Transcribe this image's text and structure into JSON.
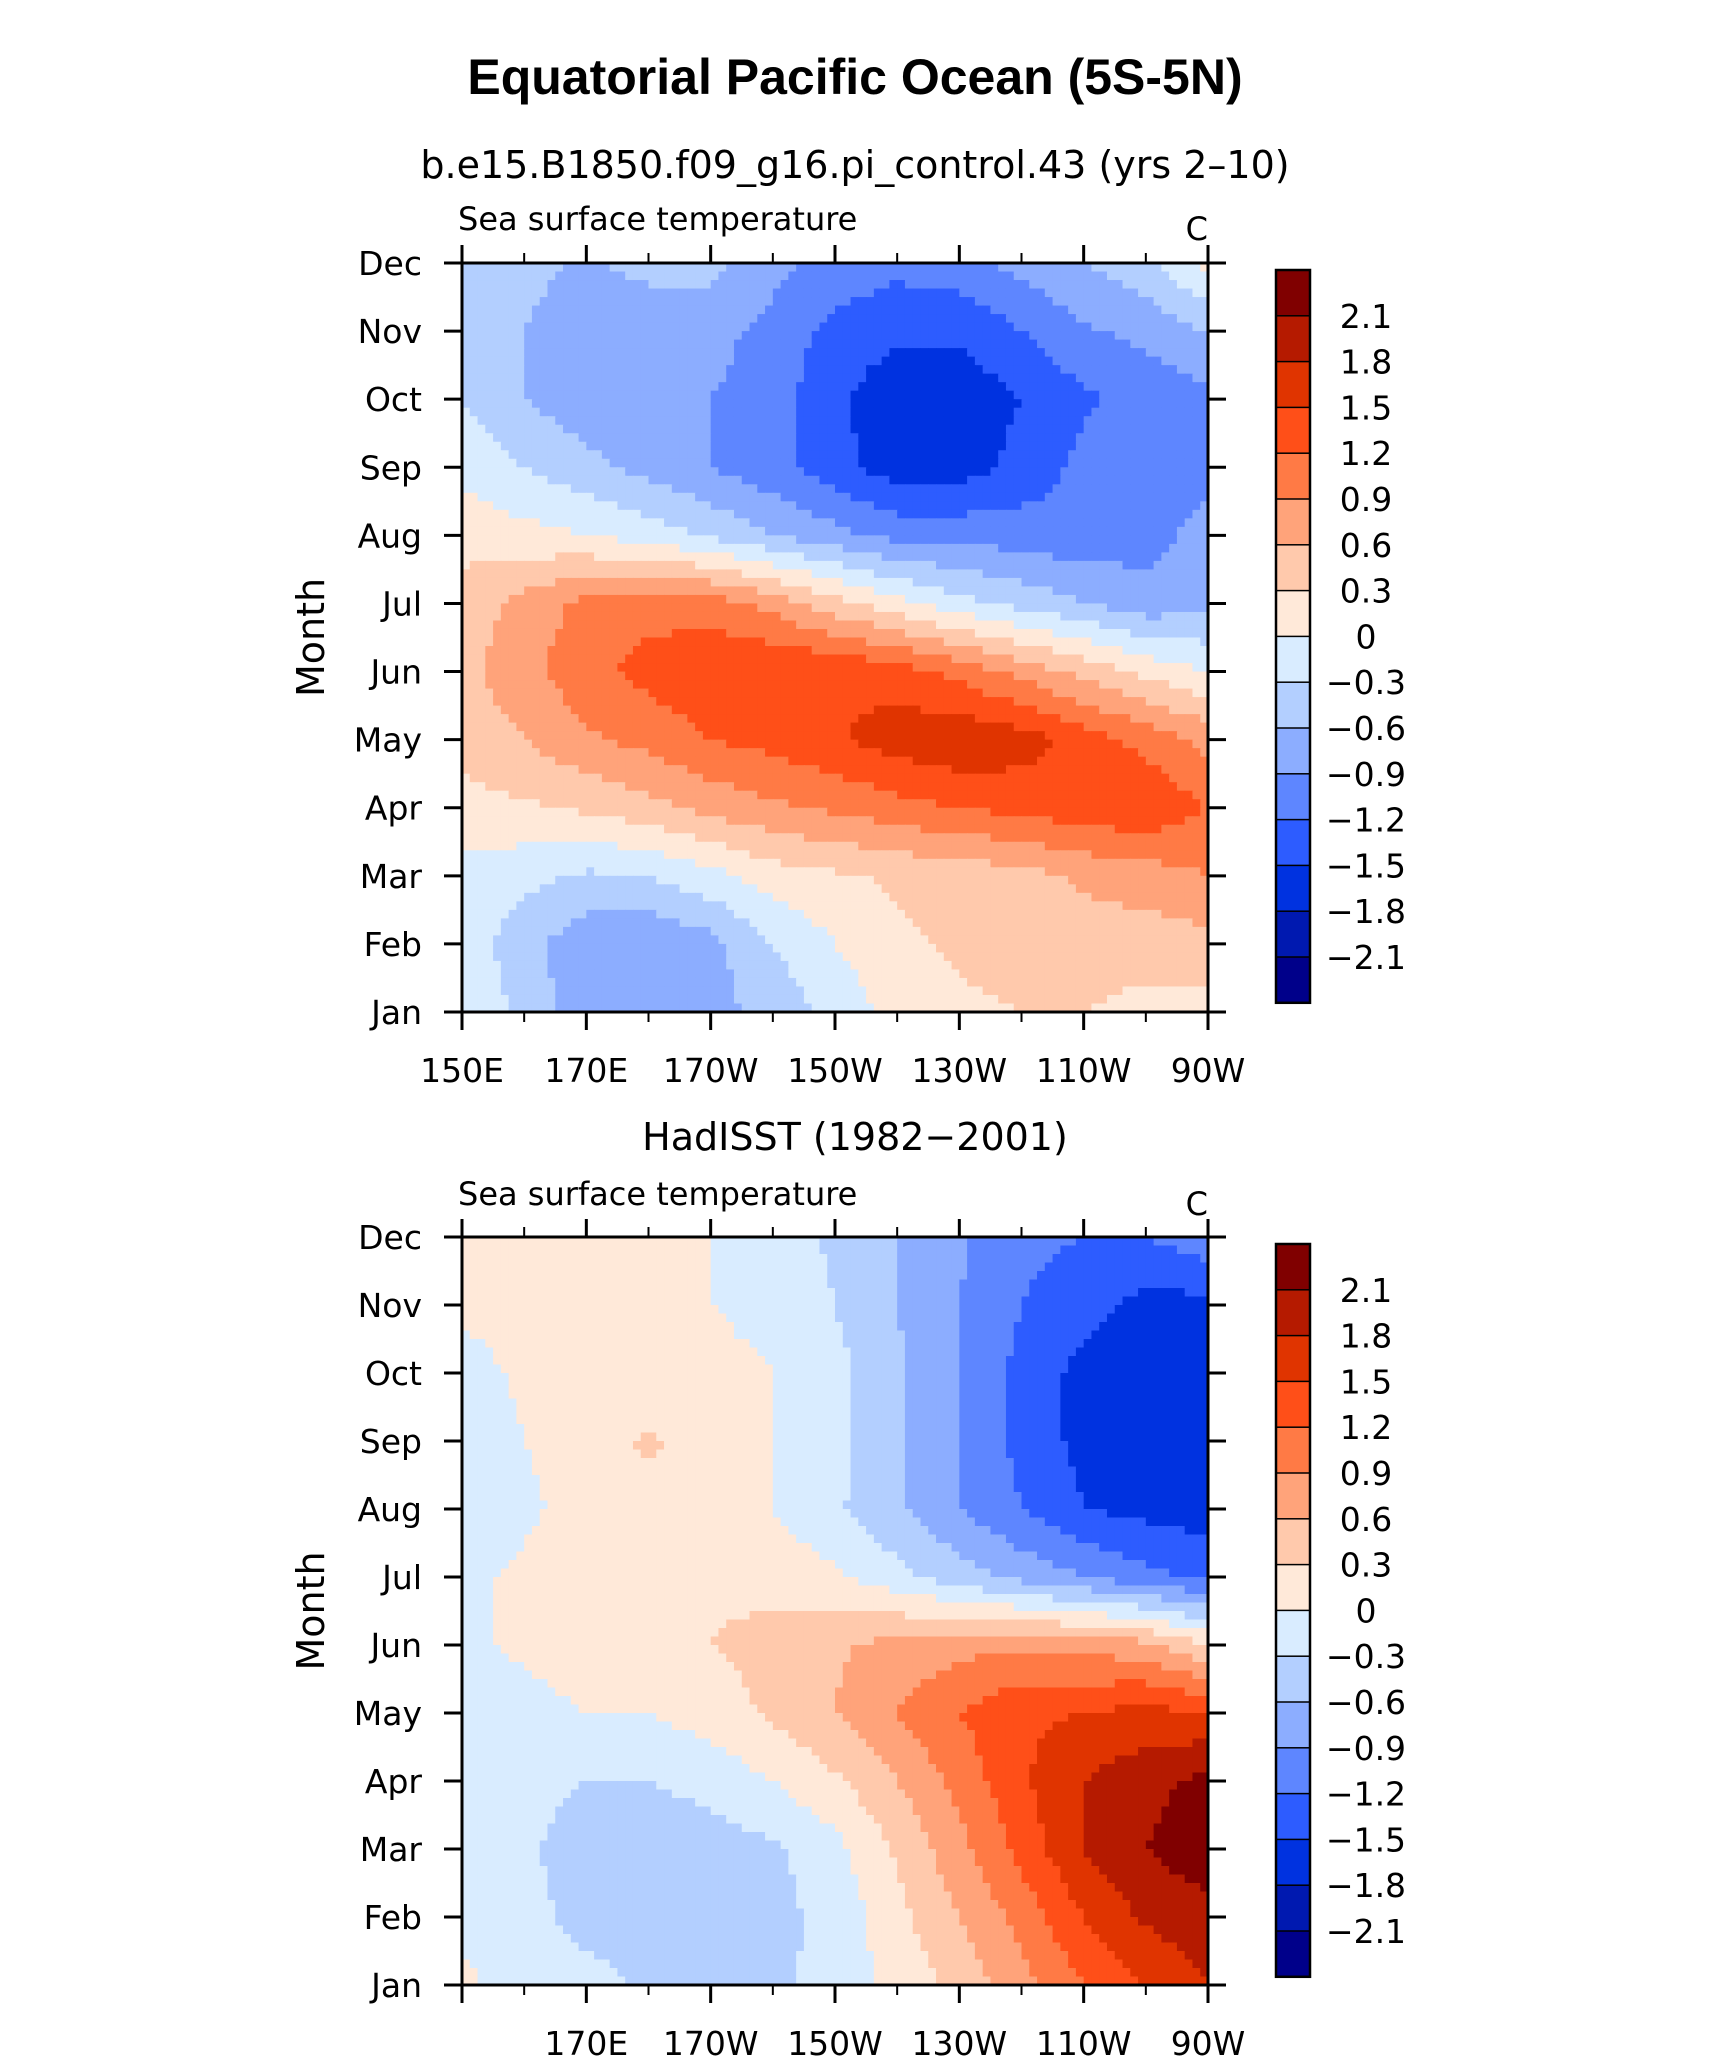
{
  "title": "Equatorial Pacific Ocean (5S-5N)",
  "colorbar": {
    "labels": [
      "2.1",
      "1.8",
      "1.5",
      "1.2",
      "0.9",
      "0.6",
      "0.3",
      "0",
      "−0.3",
      "−0.6",
      "−0.9",
      "−1.2",
      "−1.5",
      "−1.8",
      "−2.1"
    ],
    "colors": [
      "#800000",
      "#b51a00",
      "#e03400",
      "#ff4f18",
      "#ff7a45",
      "#ffa37a",
      "#ffc9ac",
      "#ffe9d9",
      "#d9ecff",
      "#b3cfff",
      "#8cadff",
      "#5e86ff",
      "#2d5cff",
      "#0032e0",
      "#0019b0",
      "#00008a"
    ]
  },
  "chart_data": [
    {
      "type": "heatmap",
      "title": "b.e15.B1850.f09_g16.pi_control.43 (yrs 2–10)",
      "left_label": "Sea surface temperature",
      "right_label": "C",
      "ylabel": "Month",
      "xlabel": "",
      "xticks": [
        {
          "lon": 150,
          "label": "150E"
        },
        {
          "lon": 170,
          "label": "170E"
        },
        {
          "lon": 190,
          "label": "170W"
        },
        {
          "lon": 210,
          "label": "150W"
        },
        {
          "lon": 230,
          "label": "130W"
        },
        {
          "lon": 250,
          "label": "110W"
        },
        {
          "lon": 270,
          "label": "90W"
        }
      ],
      "xlim": [
        150,
        270
      ],
      "yticks": [
        "Jan",
        "Feb",
        "Mar",
        "Apr",
        "May",
        "Jun",
        "Jul",
        "Aug",
        "Sep",
        "Oct",
        "Nov",
        "Dec"
      ],
      "levels": [
        -2.1,
        -1.8,
        -1.5,
        -1.2,
        -0.9,
        -0.6,
        -0.3,
        0,
        0.3,
        0.6,
        0.9,
        1.2,
        1.5,
        1.8,
        2.1
      ],
      "units": "C",
      "lon": [
        150,
        160,
        170,
        180,
        190,
        200,
        210,
        220,
        230,
        240,
        250,
        260,
        270
      ],
      "values": [
        [
          0.0,
          -0.4,
          -0.8,
          -0.9,
          -0.7,
          -0.5,
          -0.2,
          0.1,
          0.25,
          0.3,
          0.3,
          0.2,
          0.15
        ],
        [
          -0.1,
          -0.5,
          -0.8,
          -0.9,
          -0.7,
          -0.3,
          0.0,
          0.25,
          0.35,
          0.4,
          0.45,
          0.45,
          0.5
        ],
        [
          -0.1,
          -0.2,
          -0.35,
          -0.3,
          -0.1,
          0.15,
          0.25,
          0.35,
          0.4,
          0.5,
          0.65,
          0.75,
          0.9
        ],
        [
          0.2,
          0.25,
          0.35,
          0.5,
          0.7,
          0.85,
          0.95,
          1.1,
          1.2,
          1.3,
          1.4,
          1.45,
          1.2
        ],
        [
          0.4,
          0.6,
          0.85,
          1.0,
          1.2,
          1.3,
          1.45,
          1.65,
          1.75,
          1.65,
          1.35,
          1.1,
          0.8
        ],
        [
          0.5,
          0.8,
          1.1,
          1.3,
          1.45,
          1.5,
          1.5,
          1.35,
          1.1,
          0.8,
          0.5,
          0.2,
          0.0
        ],
        [
          0.4,
          0.7,
          1.0,
          1.1,
          1.05,
          0.8,
          0.4,
          0.1,
          -0.2,
          -0.4,
          -0.6,
          -0.8,
          -0.7
        ],
        [
          0.2,
          0.1,
          0.0,
          -0.15,
          -0.35,
          -0.6,
          -0.8,
          -1.0,
          -1.0,
          -1.05,
          -1.1,
          -1.0,
          -0.8
        ],
        [
          -0.1,
          -0.3,
          -0.5,
          -0.7,
          -0.9,
          -1.1,
          -1.4,
          -1.65,
          -1.65,
          -1.4,
          -1.1,
          -1.0,
          -1.0
        ],
        [
          -0.3,
          -0.6,
          -0.8,
          -0.9,
          -0.9,
          -1.05,
          -1.45,
          -1.7,
          -1.7,
          -1.5,
          -1.25,
          -1.1,
          -1.0
        ],
        [
          -0.4,
          -0.6,
          -0.8,
          -0.8,
          -0.8,
          -1.0,
          -1.3,
          -1.45,
          -1.45,
          -1.2,
          -0.95,
          -0.8,
          -0.6
        ],
        [
          -0.35,
          -0.5,
          -0.65,
          -0.5,
          -0.5,
          -0.8,
          -1.0,
          -1.1,
          -1.0,
          -0.8,
          -0.6,
          -0.4,
          0.1
        ]
      ]
    },
    {
      "type": "heatmap",
      "title": "HadISST (1982−2001)",
      "left_label": "Sea surface temperature",
      "right_label": "C",
      "ylabel": "Month",
      "xlabel": "",
      "xticks": [
        {
          "lon": 170,
          "label": "170E"
        },
        {
          "lon": 190,
          "label": "170W"
        },
        {
          "lon": 210,
          "label": "150W"
        },
        {
          "lon": 230,
          "label": "130W"
        },
        {
          "lon": 250,
          "label": "110W"
        },
        {
          "lon": 270,
          "label": "90W"
        }
      ],
      "xlim": [
        150,
        270
      ],
      "yticks": [
        "Jan",
        "Feb",
        "Mar",
        "Apr",
        "May",
        "Jun",
        "Jul",
        "Aug",
        "Sep",
        "Oct",
        "Nov",
        "Dec"
      ],
      "levels": [
        -2.1,
        -1.8,
        -1.5,
        -1.2,
        -0.9,
        -0.6,
        -0.3,
        0,
        0.3,
        0.6,
        0.9,
        1.2,
        1.5,
        1.8,
        2.1
      ],
      "units": "C",
      "lon": [
        150,
        160,
        170,
        180,
        190,
        200,
        210,
        220,
        230,
        240,
        250,
        260,
        270
      ],
      "values": [
        [
          0.05,
          -0.1,
          -0.2,
          -0.35,
          -0.4,
          -0.35,
          -0.2,
          0.1,
          0.4,
          0.8,
          1.2,
          1.5,
          1.8
        ],
        [
          -0.05,
          -0.2,
          -0.4,
          -0.45,
          -0.45,
          -0.4,
          -0.2,
          0.2,
          0.6,
          1.0,
          1.5,
          1.85,
          2.0
        ],
        [
          -0.1,
          -0.25,
          -0.45,
          -0.5,
          -0.45,
          -0.35,
          -0.1,
          0.35,
          0.8,
          1.3,
          1.8,
          2.1,
          2.3
        ],
        [
          -0.15,
          -0.2,
          -0.3,
          -0.3,
          -0.2,
          0.0,
          0.25,
          0.6,
          1.0,
          1.45,
          1.8,
          2.0,
          2.2
        ],
        [
          -0.1,
          -0.1,
          0.0,
          0.0,
          0.15,
          0.35,
          0.6,
          0.9,
          1.2,
          1.45,
          1.5,
          1.6,
          1.5
        ],
        [
          -0.05,
          0.05,
          0.15,
          0.2,
          0.3,
          0.4,
          0.55,
          0.7,
          0.8,
          0.85,
          0.8,
          0.7,
          0.3
        ],
        [
          -0.05,
          0.05,
          0.1,
          0.15,
          0.25,
          0.2,
          0.05,
          -0.2,
          -0.45,
          -0.7,
          -0.9,
          -1.1,
          -1.3
        ],
        [
          -0.25,
          -0.05,
          0.1,
          0.15,
          0.1,
          0.0,
          -0.25,
          -0.55,
          -0.9,
          -1.2,
          -1.5,
          -1.6,
          -1.65
        ],
        [
          -0.2,
          0.0,
          0.15,
          0.35,
          0.15,
          0.0,
          -0.2,
          -0.55,
          -0.9,
          -1.3,
          -1.6,
          -1.8,
          -1.8
        ],
        [
          -0.1,
          0.05,
          0.1,
          0.1,
          0.1,
          0.0,
          -0.2,
          -0.55,
          -0.9,
          -1.3,
          -1.6,
          -1.8,
          -1.75
        ],
        [
          0.05,
          0.1,
          0.1,
          0.05,
          0.0,
          -0.1,
          -0.3,
          -0.6,
          -0.9,
          -1.2,
          -1.4,
          -1.6,
          -1.6
        ],
        [
          0.1,
          0.1,
          0.1,
          0.05,
          0.0,
          -0.15,
          -0.35,
          -0.6,
          -0.85,
          -1.1,
          -1.2,
          -1.2,
          -1.0
        ]
      ]
    }
  ]
}
